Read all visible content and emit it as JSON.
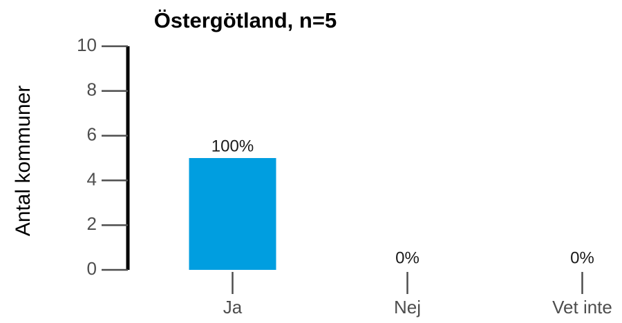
{
  "chart_data": {
    "type": "bar",
    "title": "Östergötland, n=5",
    "y_label": "Antal kommuner",
    "categories": [
      "Ja",
      "Nej",
      "Vet inte"
    ],
    "values": [
      5,
      0,
      0
    ],
    "value_labels": [
      "100%",
      "0%",
      "0%"
    ],
    "color": "#009ee0",
    "ylim": [
      0,
      10
    ],
    "yticks": [
      0,
      2,
      4,
      6,
      8,
      10
    ],
    "grid": false
  }
}
